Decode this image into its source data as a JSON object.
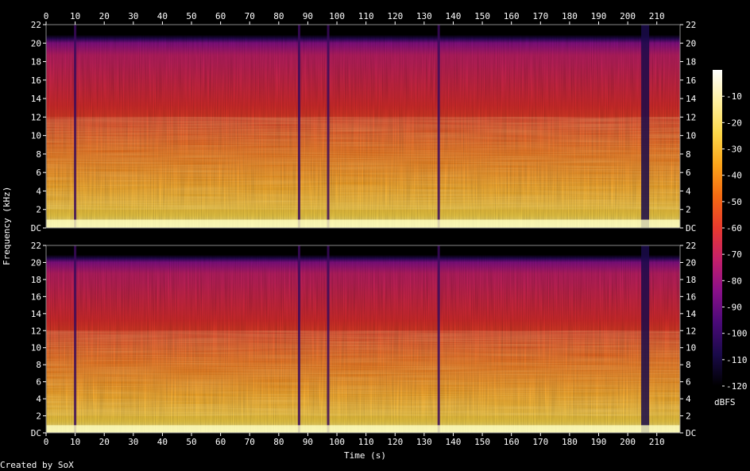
{
  "chart_data": {
    "type": "heatmap",
    "title": "",
    "xlabel": "Time (s)",
    "ylabel": "Frequency (kHz)",
    "xlim": [
      0,
      218
    ],
    "ylim": [
      0,
      22
    ],
    "x_ticks": [
      0,
      10,
      20,
      30,
      40,
      50,
      60,
      70,
      80,
      90,
      100,
      110,
      120,
      130,
      140,
      150,
      160,
      170,
      180,
      190,
      200,
      210
    ],
    "y_tick_labels": [
      "DC",
      "2",
      "4",
      "6",
      "8",
      "10",
      "12",
      "14",
      "16",
      "18",
      "20",
      "22"
    ],
    "channels": 2,
    "colorbar": {
      "unit": "dBFS",
      "min": -120,
      "max": 0,
      "ticks": [
        "-10",
        "-20",
        "-30",
        "-40",
        "-50",
        "-60",
        "-70",
        "-80",
        "-90",
        "-100",
        "-110",
        "-120"
      ],
      "colors": [
        "#000000",
        "#1a0a4a",
        "#4a0a78",
        "#8a108a",
        "#c4206a",
        "#e83a2e",
        "#f46a12",
        "#fca41a",
        "#fdd84a",
        "#fff0a0",
        "#ffffff"
      ]
    },
    "silent_gaps_s": [
      10,
      87,
      97,
      135,
      206
    ],
    "bandwidth_khz": 20
  },
  "footer": {
    "credit": "Created by SoX"
  }
}
